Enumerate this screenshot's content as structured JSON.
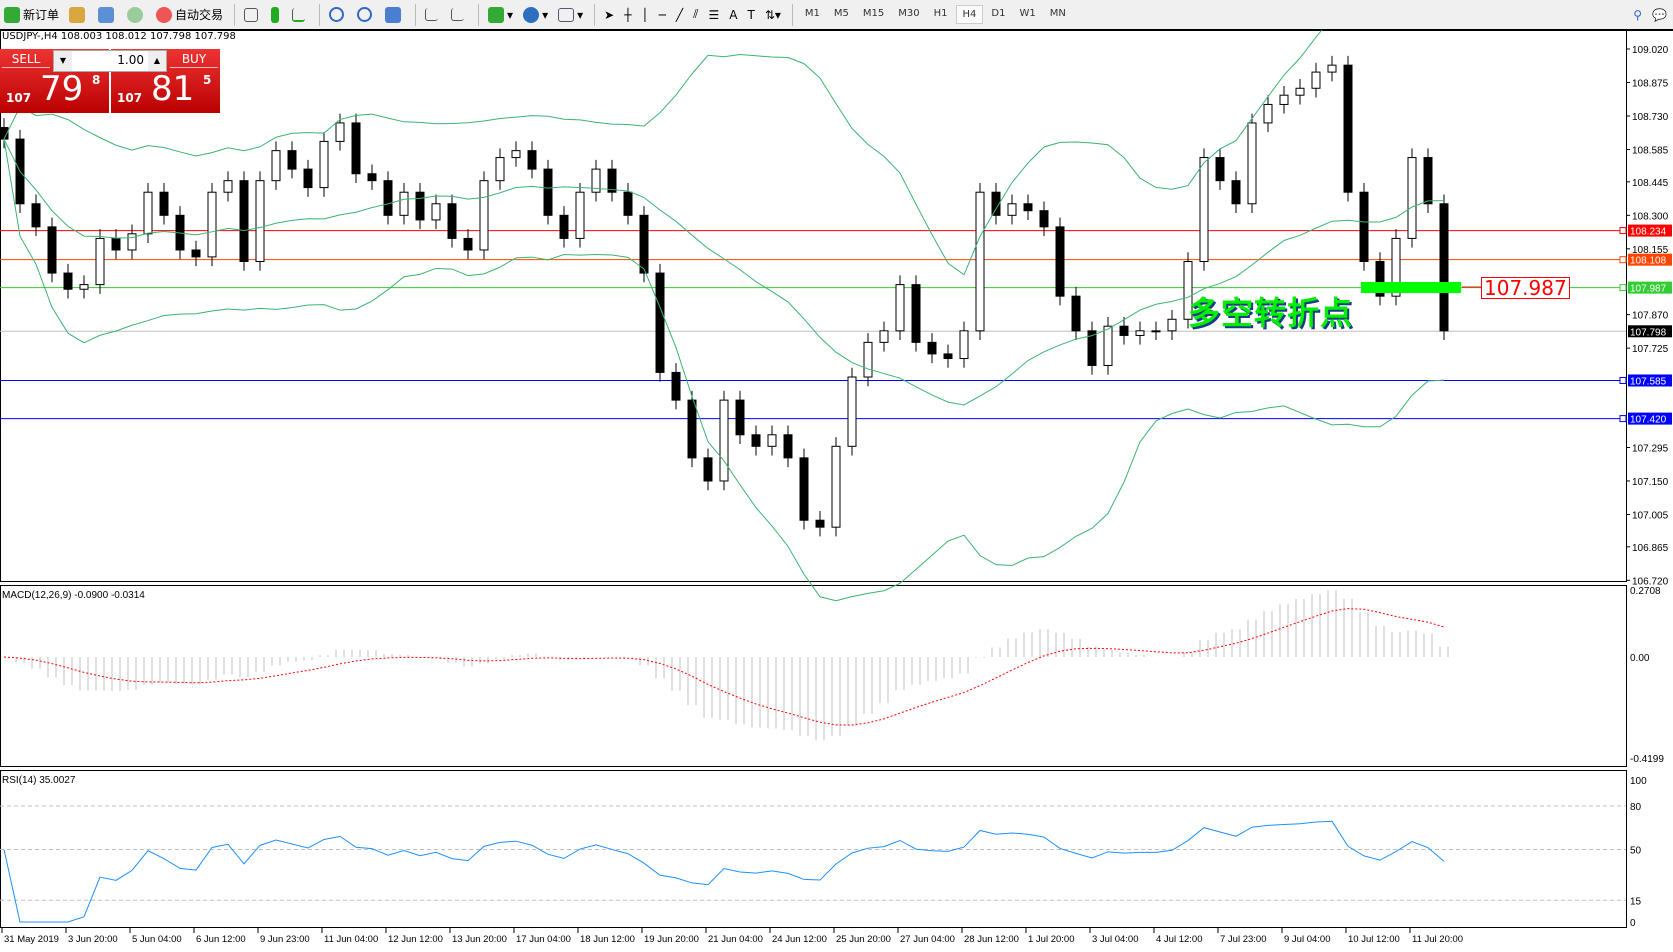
{
  "toolbar": {
    "new_order": "新订单",
    "auto_trading": "自动交易",
    "icons": [
      "new-order-icon",
      "history-icon",
      "terminal-icon",
      "signals-icon",
      "autotrading-icon",
      "bar-chart-icon",
      "candles-icon",
      "line-chart-icon",
      "zoom-in-icon",
      "zoom-out-icon",
      "tile-icon",
      "autoscroll-icon",
      "chart-shift-icon",
      "indicators-icon",
      "periods-icon",
      "templates-icon",
      "cursor-icon",
      "crosshair-icon",
      "vertical-line-icon",
      "horizontal-line-icon",
      "trendline-icon",
      "equidistant-channel-icon",
      "fibonacci-icon",
      "text-icon",
      "text-label-icon",
      "arrows-icon",
      "search-icon",
      "chat-icon"
    ],
    "text_tool": "A",
    "timeframes": [
      "M1",
      "M5",
      "M15",
      "M30",
      "H1",
      "H4",
      "D1",
      "W1",
      "MN"
    ],
    "active_timeframe": "H4"
  },
  "symbol_line": "USDJPY-,H4  108.003 108.012 107.798 107.798",
  "trade_panel": {
    "sell_label": "SELL",
    "buy_label": "BUY",
    "lot": "1.00",
    "sell_big": "107",
    "sell_main": "79",
    "sell_sup": "8",
    "buy_big": "107",
    "buy_main": "81",
    "buy_sup": "5"
  },
  "annotation": {
    "text": "多空转折点",
    "price_label": "107.987",
    "bar_color": "#00ff00"
  },
  "chart_data": {
    "type": "candlestick",
    "price_axis_ticks": [
      "109.020",
      "108.875",
      "108.730",
      "108.585",
      "108.445",
      "108.300",
      "108.155",
      "107.870",
      "107.725",
      "107.295",
      "107.150",
      "107.005",
      "106.865",
      "106.720"
    ],
    "ylim": [
      106.72,
      109.02
    ],
    "time_labels": [
      "31 May 2019",
      "3 Jun 20:00",
      "5 Jun 04:00",
      "6 Jun 12:00",
      "9 Jun 23:00",
      "11 Jun 04:00",
      "12 Jun 12:00",
      "13 Jun 20:00",
      "17 Jun 04:00",
      "18 Jun 12:00",
      "19 Jun 20:00",
      "21 Jun 04:00",
      "24 Jun 12:00",
      "25 Jun 20:00",
      "27 Jun 04:00",
      "28 Jun 12:00",
      "1 Jul 20:00",
      "3 Jul 04:00",
      "4 Jul 12:00",
      "7 Jul 23:00",
      "9 Jul 04:00",
      "10 Jul 12:00",
      "11 Jul 20:00"
    ],
    "closes": [
      108.63,
      108.35,
      108.25,
      108.05,
      107.98,
      108.0,
      108.2,
      108.15,
      108.22,
      108.4,
      108.3,
      108.15,
      108.12,
      108.4,
      108.45,
      108.1,
      108.45,
      108.58,
      108.5,
      108.42,
      108.62,
      108.7,
      108.48,
      108.45,
      108.3,
      108.4,
      108.28,
      108.35,
      108.2,
      108.15,
      108.45,
      108.55,
      108.58,
      108.5,
      108.3,
      108.2,
      108.4,
      108.5,
      108.4,
      108.3,
      108.05,
      107.62,
      107.5,
      107.25,
      107.15,
      107.5,
      107.35,
      107.3,
      107.35,
      107.25,
      106.98,
      106.95,
      107.3,
      107.6,
      107.75,
      107.8,
      108.0,
      107.75,
      107.7,
      107.68,
      107.8,
      108.4,
      108.3,
      108.35,
      108.32,
      108.25,
      107.95,
      107.8,
      107.65,
      107.82,
      107.78,
      107.8,
      107.8,
      107.85,
      108.1,
      108.55,
      108.45,
      108.35,
      108.7,
      108.78,
      108.82,
      108.85,
      108.92,
      108.95,
      108.4,
      108.1,
      107.95,
      108.2,
      108.55,
      108.35,
      107.8
    ],
    "hlines": [
      {
        "price": 108.234,
        "label": "108.234",
        "color": "#ff0000"
      },
      {
        "price": 108.108,
        "label": "108.108",
        "color": "#ff4500"
      },
      {
        "price": 107.987,
        "label": "107.987",
        "color": "#32cd32"
      },
      {
        "price": 107.798,
        "label": "107.798",
        "color": "#000000",
        "line": "#c0c0c0"
      },
      {
        "price": 107.585,
        "label": "107.585",
        "color": "#0000ff"
      },
      {
        "price": 107.42,
        "label": "107.420",
        "color": "#0000ff"
      }
    ],
    "bollinger": {
      "period": 20,
      "deviation": 2,
      "color": "#3cb371"
    },
    "macd": {
      "label": "MACD(12,26,9) -0.0900 -0.0314",
      "fast": 12,
      "slow": 26,
      "signal": 9,
      "ticks": [
        "0.2708",
        "0.00",
        "-0.4199"
      ],
      "ylim": [
        -0.4199,
        0.2708
      ],
      "hist_color": "#c0c0c0",
      "signal_color": "#ff0000"
    },
    "rsi": {
      "label": "RSI(14) 35.0027",
      "period": 14,
      "ticks": [
        "100",
        "80",
        "50",
        "15",
        "0"
      ],
      "levels": [
        80,
        50,
        15
      ],
      "color": "#1e90ff"
    }
  }
}
